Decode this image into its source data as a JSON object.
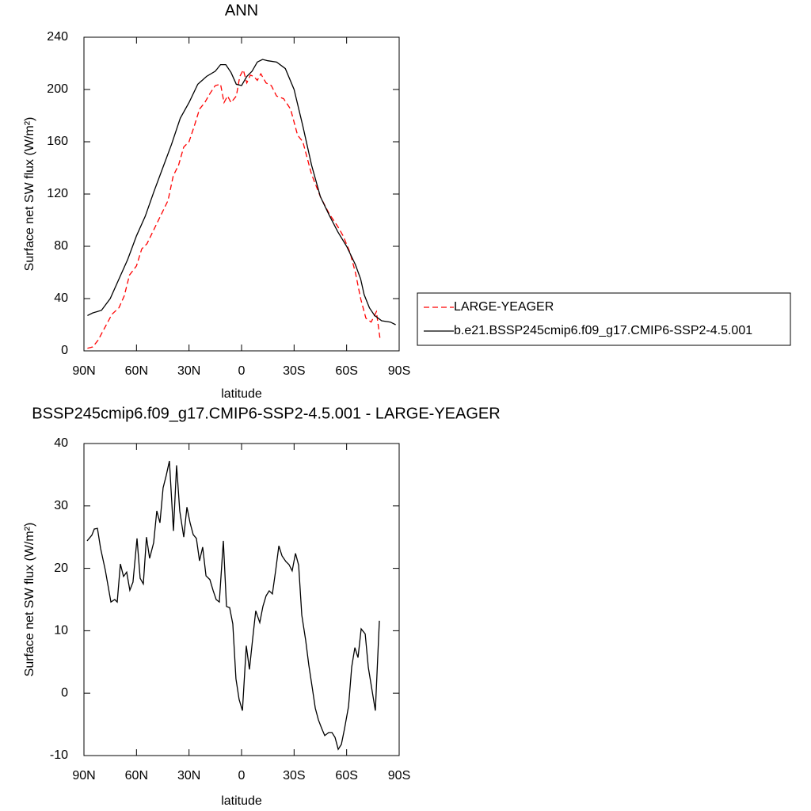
{
  "chart_data": [
    {
      "type": "line",
      "title": "ANN",
      "xlabel": "latitude",
      "ylabel": "Surface net SW flux (W/m²)",
      "xlim": [
        90,
        -90
      ],
      "xticks": [
        {
          "value": 90,
          "label": "90N"
        },
        {
          "value": 60,
          "label": "60N"
        },
        {
          "value": 30,
          "label": "30N"
        },
        0,
        {
          "value": -30,
          "label": "30S"
        },
        {
          "value": -60,
          "label": "60S"
        },
        {
          "value": -90,
          "label": "90S"
        }
      ],
      "ylim": [
        0,
        240
      ],
      "yticks": [
        0,
        40,
        80,
        120,
        160,
        200,
        240
      ],
      "legend": "outside-right",
      "series": [
        {
          "name": "LARGE-YEAGER",
          "color": "#ff0000",
          "dash": "dashed",
          "x": [
            88,
            85,
            82,
            78,
            74,
            70,
            67,
            64,
            60,
            57,
            54,
            50,
            46,
            42,
            39,
            36,
            33,
            30,
            27,
            24,
            21,
            18,
            15,
            12,
            10,
            8,
            6,
            3,
            1,
            -1,
            -3,
            -5,
            -7,
            -9,
            -11,
            -14,
            -17,
            -20,
            -24,
            -28,
            -32,
            -35,
            -40,
            -45,
            -50,
            -55,
            -58,
            -62,
            -65,
            -68,
            -71,
            -74,
            -77,
            -79
          ],
          "values": [
            2,
            3,
            8,
            18,
            28,
            33,
            42,
            58,
            65,
            78,
            82,
            93,
            104,
            115,
            134,
            142,
            156,
            160,
            172,
            185,
            190,
            197,
            203,
            204,
            190,
            195,
            190,
            195,
            210,
            215,
            205,
            211,
            210,
            207,
            212,
            205,
            203,
            195,
            193,
            185,
            165,
            160,
            135,
            118,
            105,
            95,
            88,
            75,
            60,
            40,
            25,
            22,
            30,
            10
          ]
        },
        {
          "name": "b.e21.BSSP245cmip6.f09_g17.CMIP6-SSP2-4.5.001",
          "color": "#000000",
          "dash": "solid",
          "x": [
            88,
            85,
            80,
            75,
            70,
            65,
            60,
            55,
            50,
            45,
            40,
            35,
            30,
            25,
            20,
            15,
            12,
            9,
            6,
            3,
            0,
            -3,
            -6,
            -9,
            -12,
            -15,
            -20,
            -25,
            -30,
            -35,
            -40,
            -45,
            -50,
            -55,
            -60,
            -65,
            -68,
            -70,
            -73,
            -76,
            -80,
            -85,
            -88
          ],
          "values": [
            27,
            29,
            31,
            40,
            55,
            70,
            88,
            103,
            122,
            140,
            158,
            178,
            190,
            204,
            210,
            214,
            219,
            219,
            213,
            204,
            203,
            210,
            214,
            221,
            223,
            222,
            221,
            216,
            200,
            172,
            142,
            118,
            104,
            91,
            80,
            66,
            55,
            43,
            33,
            27,
            23,
            22,
            20
          ]
        }
      ]
    },
    {
      "type": "line",
      "title": "BSSP245cmip6.f09_g17.CMIP6-SSP2-4.5.001 - LARGE-YEAGER",
      "xlabel": "latitude",
      "ylabel": "Surface net SW flux (W/m²)",
      "xlim": [
        90,
        -90
      ],
      "xticks": [
        {
          "value": 90,
          "label": "90N"
        },
        {
          "value": 60,
          "label": "60N"
        },
        {
          "value": 30,
          "label": "30N"
        },
        0,
        {
          "value": -30,
          "label": "30S"
        },
        {
          "value": -60,
          "label": "60S"
        },
        {
          "value": -90,
          "label": "90S"
        }
      ],
      "ylim": [
        -10,
        40
      ],
      "yticks": [
        -10,
        0,
        10,
        20,
        30,
        40
      ],
      "series": [
        {
          "color": "#000000",
          "dash": "solid",
          "x": [
            88.2,
            85.5,
            84.1,
            82.3,
            80.5,
            77.8,
            74.6,
            72.4,
            71,
            69.2,
            67.4,
            65.6,
            63.8,
            62,
            59.7,
            57.9,
            56.1,
            54.3,
            52.5,
            50.2,
            48.4,
            46.6,
            44.8,
            43,
            41.2,
            38.9,
            37.1,
            35.3,
            33,
            31.2,
            29.4,
            27.6,
            25.8,
            24,
            22.2,
            20.3,
            18.1,
            16.3,
            14.5,
            12.7,
            10.4,
            8.6,
            6.8,
            5,
            3.2,
            1.4,
            -0.5,
            -2.7,
            -4.5,
            -6.3,
            -8.1,
            -10.4,
            -12.2,
            -14,
            -15.8,
            -17.6,
            -19.5,
            -21.3,
            -23.1,
            -25.3,
            -27.1,
            -28.9,
            -30.8,
            -32.6,
            -34.4,
            -36.6,
            -38.4,
            -40.3,
            -42.1,
            -43.9,
            -45.7,
            -47.5,
            -49.8,
            -51.6,
            -53.4,
            -55.2,
            -57,
            -58.8,
            -61.1,
            -62.9,
            -64.7,
            -66.5,
            -68.3,
            -70.6,
            -72.4,
            -76.4,
            -78.7
          ],
          "values": [
            24.4,
            25.3,
            26.3,
            26.4,
            23.2,
            19.7,
            14.6,
            15,
            14.6,
            20.7,
            18.7,
            19.4,
            16.5,
            17.8,
            24.8,
            18.4,
            17.5,
            25,
            21.6,
            24.1,
            29.2,
            27.3,
            32.9,
            34.9,
            37.2,
            26,
            36.5,
            29.2,
            25,
            29.8,
            27.3,
            25.4,
            24.8,
            21.2,
            23.4,
            18.8,
            18.2,
            16.5,
            15,
            14.6,
            24.4,
            13.9,
            13.7,
            11.1,
            2.3,
            -1,
            -2.8,
            7.6,
            3.8,
            8.6,
            13.2,
            11.3,
            13.9,
            15.6,
            16.4,
            15.9,
            19.7,
            23.6,
            22,
            21.1,
            20.6,
            19.6,
            22.4,
            20.5,
            12.5,
            8.5,
            4.5,
            1,
            -2.4,
            -4.3,
            -5.6,
            -6.8,
            -6.3,
            -6.3,
            -7.1,
            -9,
            -8.2,
            -5.7,
            -2.1,
            4.2,
            7.3,
            5.7,
            10.3,
            9.5,
            4.1,
            -2.8,
            11.6
          ]
        }
      ]
    }
  ]
}
